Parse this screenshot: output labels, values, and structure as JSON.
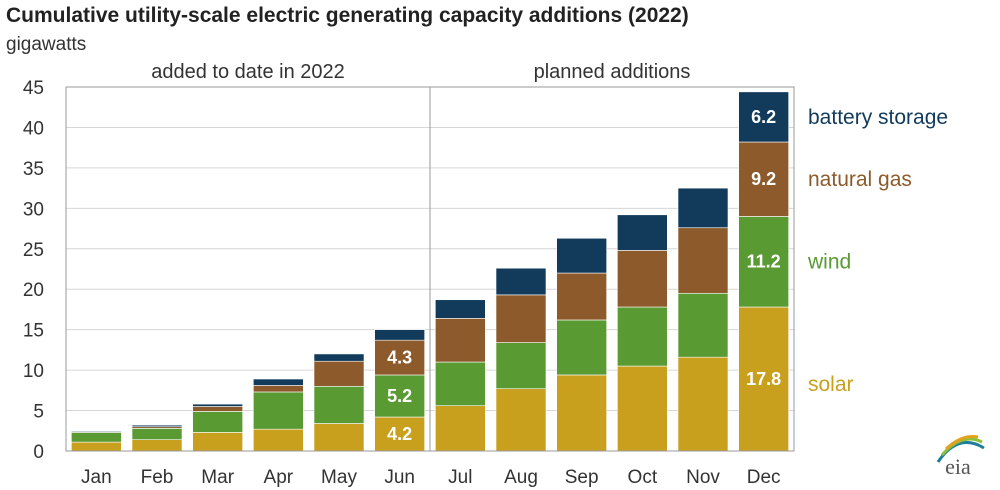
{
  "chart_data": {
    "type": "bar",
    "stacked": true,
    "title": "Cumulative utility-scale electric generating capacity additions (2022)",
    "unit_label": "gigawatts",
    "categories": [
      "Jan",
      "Feb",
      "Mar",
      "Apr",
      "May",
      "Jun",
      "Jul",
      "Aug",
      "Sep",
      "Oct",
      "Nov",
      "Dec"
    ],
    "sections": [
      {
        "label": "added to date in 2022",
        "from": "Jan",
        "to": "Jun"
      },
      {
        "label": "planned additions",
        "from": "Jul",
        "to": "Dec"
      }
    ],
    "ylim": [
      0,
      45
    ],
    "yticks": [
      0,
      5,
      10,
      15,
      20,
      25,
      30,
      35,
      40,
      45
    ],
    "series": [
      {
        "name": "solar",
        "color": "#C8A01E",
        "values": [
          1.1,
          1.4,
          2.3,
          2.7,
          3.4,
          4.2,
          5.6,
          7.7,
          9.4,
          10.5,
          11.6,
          17.8
        ]
      },
      {
        "name": "wind",
        "color": "#5A9A33",
        "values": [
          1.2,
          1.4,
          2.6,
          4.6,
          4.6,
          5.2,
          5.4,
          5.7,
          6.8,
          7.3,
          7.9,
          11.2
        ]
      },
      {
        "name": "natural gas",
        "color": "#8C5A2B",
        "values": [
          0.1,
          0.2,
          0.6,
          0.8,
          3.1,
          4.3,
          5.4,
          5.9,
          5.8,
          7.0,
          8.1,
          9.2
        ]
      },
      {
        "name": "battery storage",
        "color": "#123A5A",
        "values": [
          0.1,
          0.2,
          0.3,
          0.8,
          0.9,
          1.3,
          2.3,
          3.3,
          4.3,
          4.4,
          4.9,
          6.2
        ]
      }
    ],
    "data_labels": [
      {
        "category": "Jun",
        "series": "solar",
        "text": "4.2"
      },
      {
        "category": "Jun",
        "series": "wind",
        "text": "5.2"
      },
      {
        "category": "Jun",
        "series": "natural gas",
        "text": "4.3"
      },
      {
        "category": "Dec",
        "series": "solar",
        "text": "17.8"
      },
      {
        "category": "Dec",
        "series": "wind",
        "text": "11.2"
      },
      {
        "category": "Dec",
        "series": "natural gas",
        "text": "9.2"
      },
      {
        "category": "Dec",
        "series": "battery storage",
        "text": "6.2"
      }
    ],
    "legend": [
      {
        "name": "battery storage",
        "color": "#123A5A"
      },
      {
        "name": "natural gas",
        "color": "#8C5A2B"
      },
      {
        "name": "wind",
        "color": "#5A9A33"
      },
      {
        "name": "solar",
        "color": "#C8A01E"
      }
    ],
    "legend_placement": "right",
    "grid": true,
    "source_logo": "eia"
  }
}
